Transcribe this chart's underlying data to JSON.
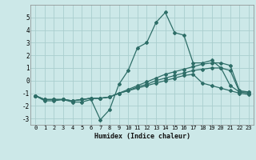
{
  "xlabel": "Humidex (Indice chaleur)",
  "ylabel": "",
  "bg_color": "#cce8e8",
  "grid_color": "#aacece",
  "line_color": "#2e6e68",
  "xlim": [
    -0.5,
    23.5
  ],
  "ylim": [
    -3.5,
    6.0
  ],
  "yticks": [
    -3,
    -2,
    -1,
    0,
    1,
    2,
    3,
    4,
    5
  ],
  "xticks": [
    0,
    1,
    2,
    3,
    4,
    5,
    6,
    7,
    8,
    9,
    10,
    11,
    12,
    13,
    14,
    15,
    16,
    17,
    18,
    19,
    20,
    21,
    22,
    23
  ],
  "series": [
    [
      -1.2,
      -1.6,
      -1.6,
      -1.5,
      -1.7,
      -1.7,
      -1.5,
      -3.1,
      -2.3,
      -0.3,
      0.8,
      2.6,
      3.0,
      4.6,
      5.4,
      3.8,
      3.6,
      1.4,
      1.4,
      1.6,
      1.0,
      -0.4,
      -0.9,
      -0.9
    ],
    [
      -1.2,
      -1.5,
      -1.5,
      -1.5,
      -1.6,
      -1.5,
      -1.4,
      -1.4,
      -1.3,
      -1.0,
      -0.7,
      -0.4,
      -0.1,
      0.2,
      0.5,
      0.7,
      0.9,
      1.1,
      1.3,
      1.4,
      1.4,
      1.2,
      -0.8,
      -0.9
    ],
    [
      -1.2,
      -1.5,
      -1.5,
      -1.5,
      -1.6,
      -1.5,
      -1.4,
      -1.4,
      -1.3,
      -1.0,
      -0.8,
      -0.5,
      -0.3,
      0.0,
      0.2,
      0.4,
      0.6,
      0.8,
      0.9,
      1.0,
      1.0,
      0.8,
      -0.9,
      -1.0
    ],
    [
      -1.2,
      -1.5,
      -1.5,
      -1.5,
      -1.6,
      -1.5,
      -1.4,
      -1.4,
      -1.3,
      -1.0,
      -0.8,
      -0.6,
      -0.4,
      -0.2,
      0.0,
      0.2,
      0.4,
      0.5,
      -0.2,
      -0.4,
      -0.6,
      -0.8,
      -1.0,
      -1.1
    ]
  ]
}
